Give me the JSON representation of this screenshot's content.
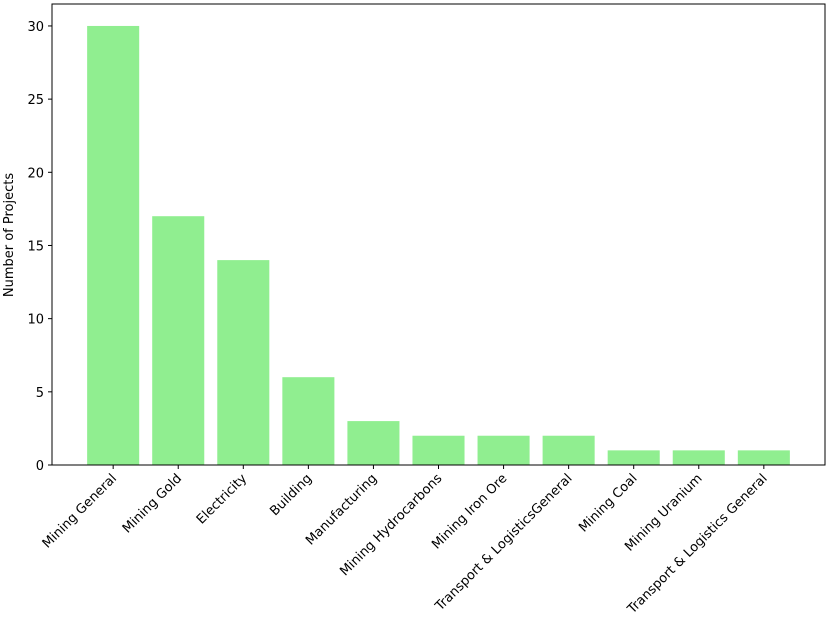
{
  "chart_data": {
    "type": "bar",
    "y_label": "Number of Projects",
    "categories": [
      "Mining General",
      "Mining Gold",
      "Electricity",
      "Building",
      "Manufacturing",
      "Mining Hydrocarbons",
      "Mining Iron Ore",
      "Transport & LogisticsGeneral",
      "Mining Coal",
      "Mining Uranium",
      "Transport & Logistics General"
    ],
    "values": [
      30,
      17,
      14,
      6,
      3,
      2,
      2,
      2,
      1,
      1,
      1
    ],
    "color": "#90ee90",
    "ylim": [
      0,
      31.5
    ],
    "yticks": [
      0,
      5,
      10,
      15,
      20,
      25,
      30
    ],
    "grid": false
  }
}
